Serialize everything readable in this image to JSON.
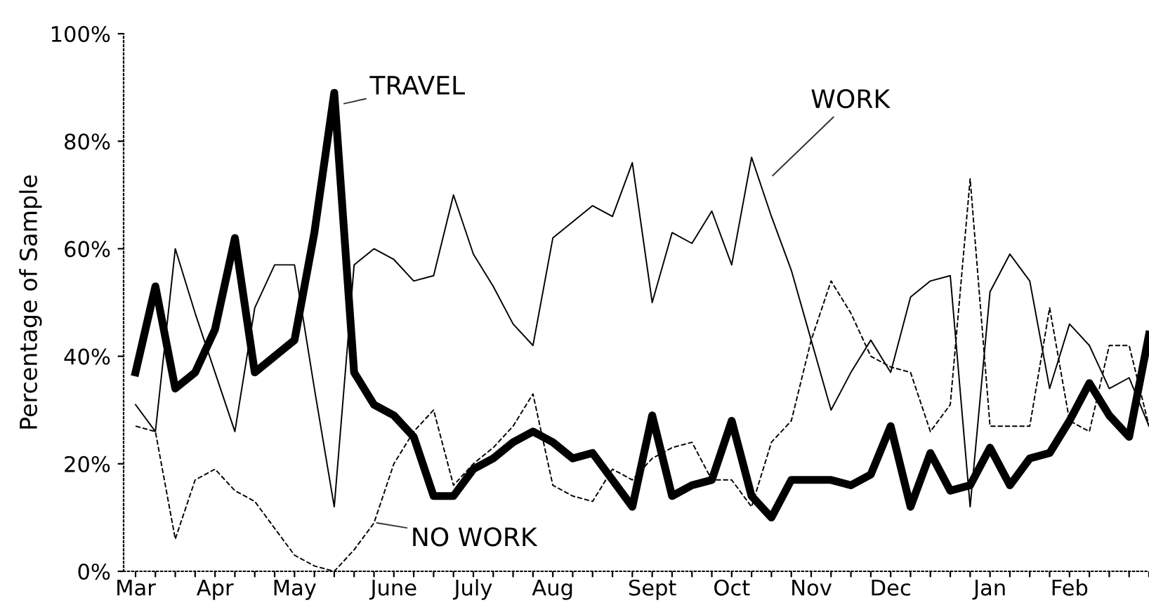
{
  "chart_data": {
    "type": "line",
    "ylabel": "Percentage of Sample",
    "categories": [
      "Mar",
      null,
      null,
      null,
      "Apr",
      null,
      null,
      null,
      "May",
      null,
      null,
      null,
      null,
      "June",
      null,
      null,
      null,
      "July",
      null,
      null,
      null,
      "Aug",
      null,
      null,
      null,
      null,
      "Sept",
      null,
      null,
      null,
      "Oct",
      null,
      null,
      null,
      "Nov",
      null,
      null,
      null,
      "Dec",
      null,
      null,
      null,
      null,
      "Jan",
      null,
      null,
      null,
      "Feb",
      null,
      null,
      null,
      null
    ],
    "series": [
      {
        "color": "#000000",
        "line_style": "solid",
        "values": [
          37,
          53,
          34,
          37,
          45,
          62,
          37,
          40,
          43,
          63,
          89,
          37,
          31,
          29,
          25,
          14,
          14,
          19,
          21,
          24,
          26,
          24,
          21,
          22,
          17,
          12,
          29,
          14,
          16,
          17,
          28,
          14,
          10,
          17,
          17,
          17,
          16,
          18,
          27,
          12,
          22,
          15,
          16,
          23,
          16,
          21,
          22,
          28,
          35,
          29,
          25,
          44
        ]
      },
      {
        "color": "#000000",
        "line_style": "solid",
        "values": [
          31,
          26,
          60,
          48,
          37,
          26,
          49,
          57,
          57,
          34,
          12,
          57,
          60,
          58,
          54,
          55,
          70,
          59,
          53,
          46,
          42,
          62,
          65,
          68,
          66,
          76,
          50,
          63,
          61,
          67,
          57,
          77,
          66,
          56,
          43,
          30,
          37,
          43,
          37,
          51,
          54,
          55,
          12,
          52,
          59,
          54,
          34,
          46,
          42,
          34,
          36,
          27
        ]
      },
      {
        "color": "#000000",
        "line_style": "dashed",
        "values": [
          27,
          26,
          6,
          17,
          19,
          15,
          13,
          8,
          3,
          1,
          0,
          4,
          9,
          20,
          26,
          30,
          16,
          20,
          23,
          27,
          33,
          16,
          14,
          13,
          19,
          17,
          21,
          23,
          24,
          17,
          17,
          12,
          24,
          28,
          43,
          54,
          48,
          40,
          38,
          37,
          26,
          31,
          73,
          27,
          27,
          27,
          49,
          28,
          26,
          42,
          42,
          27
        ]
      }
    ],
    "ylim": [
      0,
      100
    ],
    "yticks": [
      {
        "value": 0,
        "label": "0%"
      },
      {
        "value": 20,
        "label": "20%"
      },
      {
        "value": 40,
        "label": "40%"
      },
      {
        "value": 60,
        "label": "60%"
      },
      {
        "value": 80,
        "label": "80%"
      },
      {
        "value": 100,
        "label": "100%"
      }
    ],
    "annotations": [
      "TRAVEL",
      "WORK",
      "NO WORK"
    ],
    "grid": false,
    "legend": false,
    "marker": "none"
  }
}
